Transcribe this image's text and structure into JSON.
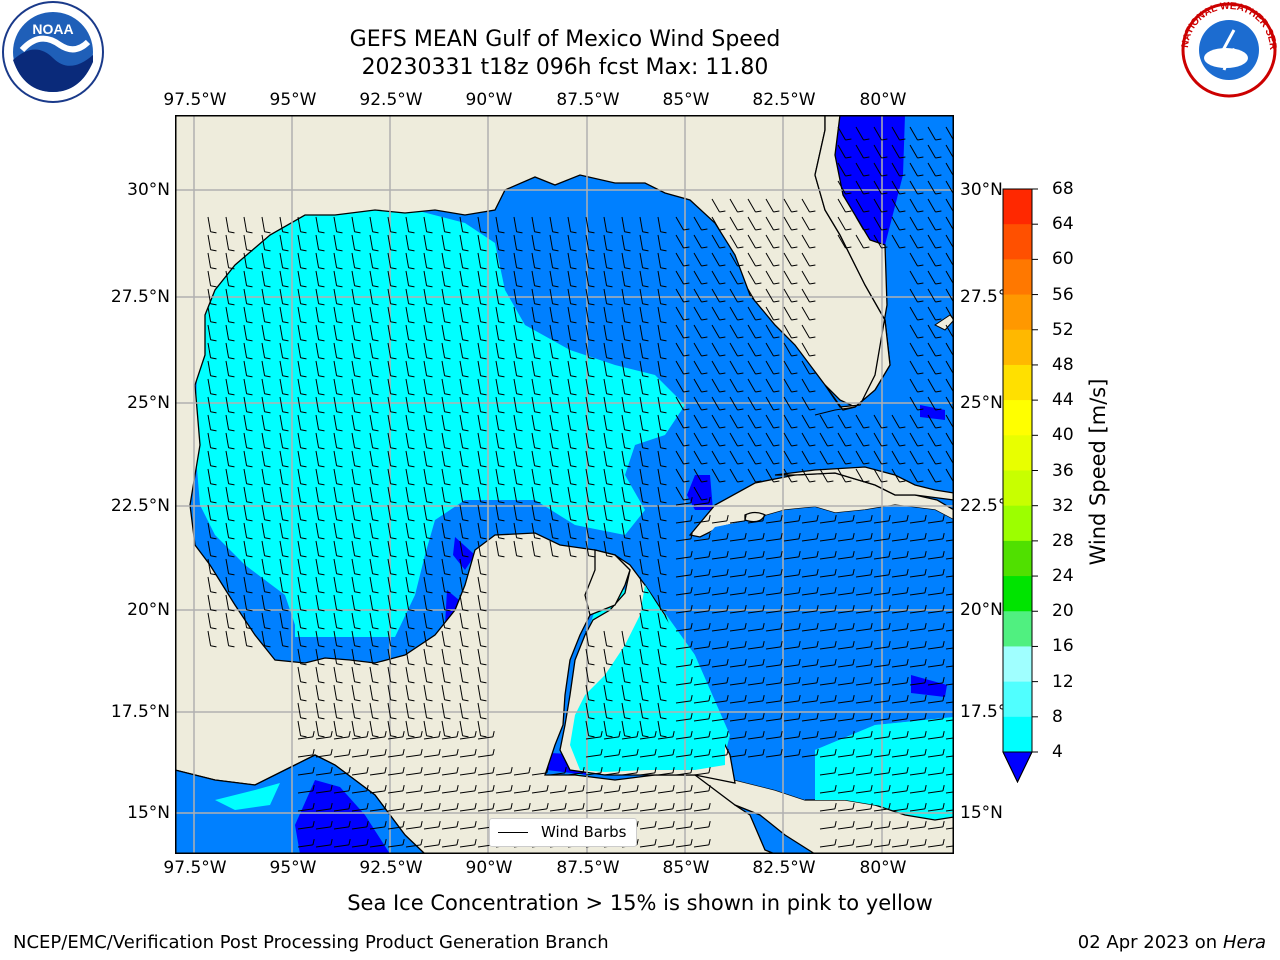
{
  "title": {
    "line1": "GEFS MEAN Gulf of Mexico Wind Speed",
    "line2": "20230331 t18z 096h fcst   Max: 11.80"
  },
  "logos": {
    "left": "NOAA",
    "right": "NATIONAL WEATHER SERVICE"
  },
  "map": {
    "lon_labels": [
      "97.5°W",
      "95°W",
      "92.5°W",
      "90°W",
      "87.5°W",
      "85°W",
      "82.5°W",
      "80°W"
    ],
    "lat_labels": [
      "30°N",
      "27.5°N",
      "25°N",
      "22.5°N",
      "20°N",
      "17.5°N",
      "15°N"
    ],
    "legend_label": "Wind Barbs",
    "colors": {
      "land": "#eeecdc",
      "grid": "#b0b0b0"
    }
  },
  "colorbar": {
    "label": "Wind Speed [m/s]",
    "ticks": [
      "68",
      "64",
      "60",
      "56",
      "52",
      "48",
      "44",
      "40",
      "36",
      "32",
      "28",
      "24",
      "20",
      "16",
      "12",
      "8",
      "4"
    ],
    "colors": [
      "#ff0000",
      "#ff2800",
      "#ff5000",
      "#ff7800",
      "#ff9800",
      "#ffb800",
      "#ffe000",
      "#ffff00",
      "#e8ff00",
      "#c8ff00",
      "#9cff00",
      "#50e000",
      "#00e400",
      "#50f080",
      "#a0ffff",
      "#50ffff",
      "#00ffff",
      "#0080ff"
    ],
    "extend_color": "#0000ff"
  },
  "caption": "Sea Ice Concentration > 15% is shown in pink to yellow",
  "footer": {
    "left": "NCEP/EMC/Verification Post Processing Product Generation Branch",
    "right_date": "02 Apr 2023 on ",
    "right_host": "Hera"
  }
}
